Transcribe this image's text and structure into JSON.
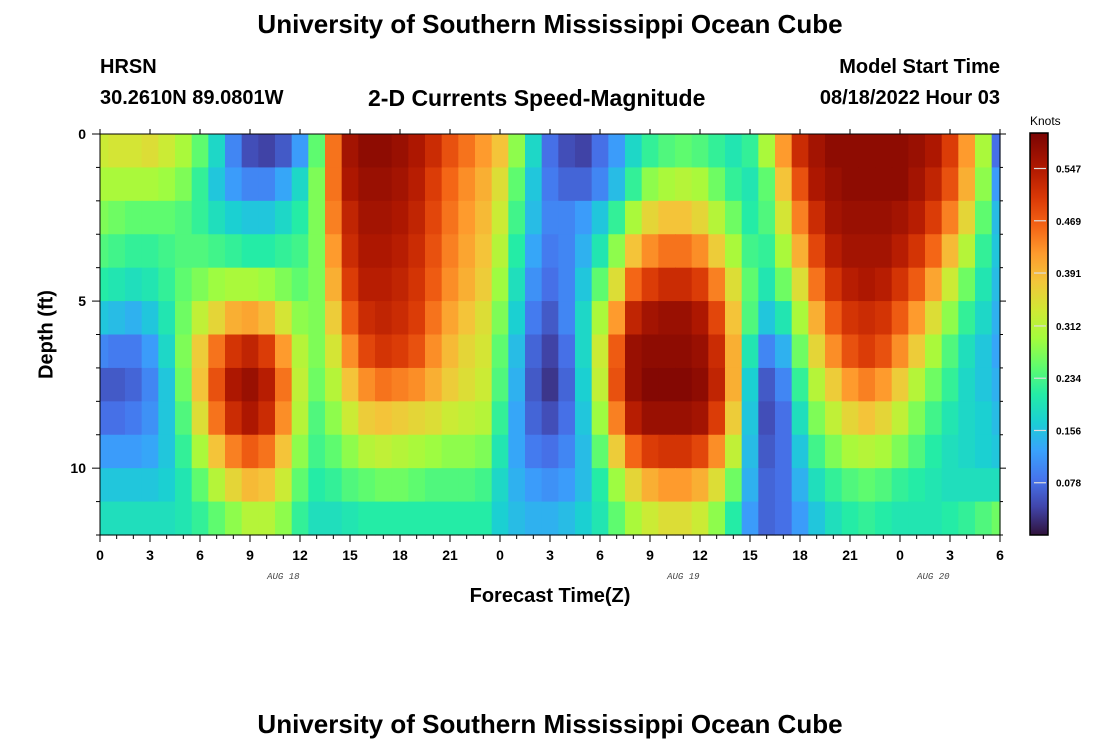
{
  "page": {
    "title": "University of Southern Mississippi Ocean Cube",
    "footer_title": "University of Southern Mississippi Ocean Cube",
    "station": "HRSN",
    "coords": "30.2610N  89.0801W",
    "plot_title": "2-D Currents Speed-Magnitude",
    "start_label": "Model Start Time",
    "start_value": "08/18/2022 Hour 03"
  },
  "chart_data": {
    "type": "heatmap",
    "title": "2-D Currents Speed-Magnitude",
    "xlabel": "Forecast Time(Z)",
    "ylabel": "Depth (ft)",
    "x_tick_labels": [
      "0",
      "3",
      "6",
      "9",
      "12",
      "15",
      "18",
      "21",
      "0",
      "3",
      "6",
      "9",
      "12",
      "15",
      "18",
      "21",
      "0",
      "3",
      "6"
    ],
    "x_range_hours": [
      0,
      54
    ],
    "date_labels": [
      {
        "text": "AUG 18",
        "hour": 11
      },
      {
        "text": "AUG 19",
        "hour": 35
      },
      {
        "text": "AUG 20",
        "hour": 50
      }
    ],
    "y_tick_labels": [
      "0",
      "5",
      "10"
    ],
    "y_range_ft": [
      0,
      12
    ],
    "colorbar": {
      "units": "Knots",
      "min": 0.0,
      "max": 0.6,
      "tick_values": [
        0.547,
        0.469,
        0.391,
        0.312,
        0.234,
        0.156,
        0.078
      ],
      "tick_labels": [
        "0.547",
        "0.469",
        "0.391",
        "0.312",
        "0.234",
        "0.156",
        "0.078"
      ]
    },
    "depth_levels_ft": [
      0.5,
      1.5,
      2.5,
      3.5,
      4.5,
      5.5,
      6.5,
      7.5,
      8.5,
      9.5,
      10.5,
      11.5
    ],
    "time_step_hours": 1,
    "speed_field": {
      "depths_ft": [
        0.5,
        1.5,
        2.5,
        3.5,
        4.5,
        5.5,
        6.5,
        7.5,
        8.5,
        9.5,
        10.5,
        11.5
      ],
      "hours": [
        0,
        1,
        2,
        3,
        4,
        5,
        6,
        7,
        8,
        9,
        10,
        11,
        12,
        13,
        14,
        15,
        16,
        17,
        18,
        19,
        20,
        21,
        22,
        23,
        24,
        25,
        26,
        27,
        28,
        29,
        30,
        31,
        32,
        33,
        34,
        35,
        36,
        37,
        38,
        39,
        40,
        41,
        42,
        43,
        44,
        45,
        46,
        47,
        48,
        49,
        50,
        51,
        52,
        53,
        54
      ],
      "values": [
        [
          0.33,
          0.34,
          0.34,
          0.35,
          0.33,
          0.3,
          0.25,
          0.18,
          0.1,
          0.05,
          0.04,
          0.06,
          0.12,
          0.25,
          0.45,
          0.56,
          0.58,
          0.58,
          0.57,
          0.55,
          0.52,
          0.48,
          0.45,
          0.42,
          0.38,
          0.28,
          0.18,
          0.08,
          0.05,
          0.04,
          0.08,
          0.12,
          0.18,
          0.22,
          0.24,
          0.25,
          0.24,
          0.22,
          0.2,
          0.22,
          0.3,
          0.42,
          0.52,
          0.56,
          0.58,
          0.58,
          0.58,
          0.58,
          0.58,
          0.57,
          0.55,
          0.5,
          0.42,
          0.3,
          0.08
        ],
        [
          0.3,
          0.3,
          0.3,
          0.3,
          0.29,
          0.27,
          0.22,
          0.16,
          0.12,
          0.1,
          0.1,
          0.13,
          0.18,
          0.27,
          0.45,
          0.55,
          0.57,
          0.57,
          0.56,
          0.54,
          0.5,
          0.46,
          0.43,
          0.4,
          0.35,
          0.25,
          0.16,
          0.09,
          0.07,
          0.07,
          0.1,
          0.15,
          0.22,
          0.28,
          0.3,
          0.31,
          0.3,
          0.26,
          0.22,
          0.2,
          0.25,
          0.38,
          0.48,
          0.55,
          0.57,
          0.58,
          0.58,
          0.58,
          0.58,
          0.56,
          0.53,
          0.48,
          0.4,
          0.28,
          0.12
        ],
        [
          0.27,
          0.26,
          0.25,
          0.25,
          0.25,
          0.24,
          0.22,
          0.19,
          0.17,
          0.16,
          0.16,
          0.18,
          0.21,
          0.27,
          0.44,
          0.53,
          0.56,
          0.56,
          0.55,
          0.53,
          0.49,
          0.45,
          0.42,
          0.39,
          0.33,
          0.23,
          0.15,
          0.1,
          0.1,
          0.12,
          0.16,
          0.22,
          0.3,
          0.36,
          0.38,
          0.38,
          0.36,
          0.31,
          0.26,
          0.21,
          0.24,
          0.34,
          0.44,
          0.52,
          0.56,
          0.57,
          0.57,
          0.57,
          0.56,
          0.54,
          0.5,
          0.44,
          0.36,
          0.25,
          0.15
        ],
        [
          0.24,
          0.23,
          0.22,
          0.22,
          0.23,
          0.24,
          0.24,
          0.23,
          0.22,
          0.21,
          0.21,
          0.22,
          0.23,
          0.27,
          0.42,
          0.52,
          0.55,
          0.55,
          0.54,
          0.52,
          0.48,
          0.44,
          0.41,
          0.38,
          0.31,
          0.21,
          0.13,
          0.09,
          0.1,
          0.14,
          0.2,
          0.28,
          0.38,
          0.43,
          0.45,
          0.45,
          0.43,
          0.37,
          0.3,
          0.23,
          0.22,
          0.3,
          0.4,
          0.49,
          0.54,
          0.56,
          0.56,
          0.56,
          0.54,
          0.51,
          0.46,
          0.39,
          0.31,
          0.22,
          0.16
        ],
        [
          0.21,
          0.2,
          0.19,
          0.2,
          0.22,
          0.25,
          0.27,
          0.29,
          0.3,
          0.3,
          0.29,
          0.27,
          0.25,
          0.27,
          0.4,
          0.5,
          0.54,
          0.54,
          0.53,
          0.51,
          0.47,
          0.43,
          0.4,
          0.37,
          0.29,
          0.19,
          0.11,
          0.08,
          0.1,
          0.16,
          0.25,
          0.35,
          0.46,
          0.5,
          0.52,
          0.52,
          0.5,
          0.44,
          0.35,
          0.25,
          0.2,
          0.26,
          0.35,
          0.45,
          0.51,
          0.54,
          0.55,
          0.54,
          0.51,
          0.47,
          0.41,
          0.33,
          0.26,
          0.2,
          0.15
        ],
        [
          0.16,
          0.15,
          0.14,
          0.16,
          0.2,
          0.26,
          0.32,
          0.36,
          0.4,
          0.41,
          0.39,
          0.34,
          0.28,
          0.27,
          0.37,
          0.47,
          0.52,
          0.53,
          0.52,
          0.5,
          0.45,
          0.41,
          0.38,
          0.35,
          0.27,
          0.17,
          0.09,
          0.06,
          0.1,
          0.18,
          0.3,
          0.42,
          0.53,
          0.56,
          0.57,
          0.57,
          0.55,
          0.49,
          0.38,
          0.24,
          0.16,
          0.2,
          0.3,
          0.4,
          0.47,
          0.51,
          0.52,
          0.51,
          0.47,
          0.42,
          0.35,
          0.28,
          0.22,
          0.18,
          0.14
        ],
        [
          0.1,
          0.09,
          0.09,
          0.12,
          0.18,
          0.27,
          0.37,
          0.45,
          0.51,
          0.53,
          0.5,
          0.42,
          0.31,
          0.27,
          0.34,
          0.43,
          0.49,
          0.51,
          0.5,
          0.48,
          0.43,
          0.39,
          0.36,
          0.34,
          0.25,
          0.15,
          0.07,
          0.04,
          0.08,
          0.18,
          0.33,
          0.47,
          0.57,
          0.58,
          0.58,
          0.58,
          0.57,
          0.52,
          0.4,
          0.2,
          0.1,
          0.14,
          0.26,
          0.36,
          0.43,
          0.48,
          0.5,
          0.48,
          0.43,
          0.37,
          0.3,
          0.24,
          0.19,
          0.16,
          0.13
        ],
        [
          0.06,
          0.06,
          0.07,
          0.1,
          0.16,
          0.26,
          0.38,
          0.48,
          0.55,
          0.57,
          0.54,
          0.45,
          0.32,
          0.26,
          0.31,
          0.38,
          0.43,
          0.45,
          0.44,
          0.43,
          0.4,
          0.37,
          0.35,
          0.33,
          0.24,
          0.14,
          0.06,
          0.03,
          0.07,
          0.17,
          0.32,
          0.48,
          0.57,
          0.59,
          0.59,
          0.59,
          0.58,
          0.53,
          0.4,
          0.17,
          0.06,
          0.1,
          0.22,
          0.31,
          0.37,
          0.42,
          0.44,
          0.42,
          0.37,
          0.31,
          0.26,
          0.22,
          0.18,
          0.16,
          0.14
        ],
        [
          0.08,
          0.08,
          0.09,
          0.11,
          0.16,
          0.24,
          0.35,
          0.45,
          0.52,
          0.55,
          0.52,
          0.43,
          0.31,
          0.24,
          0.28,
          0.33,
          0.37,
          0.38,
          0.37,
          0.36,
          0.35,
          0.33,
          0.32,
          0.31,
          0.22,
          0.13,
          0.07,
          0.05,
          0.08,
          0.16,
          0.29,
          0.44,
          0.54,
          0.57,
          0.57,
          0.57,
          0.56,
          0.5,
          0.37,
          0.16,
          0.05,
          0.08,
          0.19,
          0.27,
          0.32,
          0.36,
          0.38,
          0.36,
          0.32,
          0.27,
          0.23,
          0.2,
          0.18,
          0.17,
          0.15
        ],
        [
          0.12,
          0.12,
          0.12,
          0.13,
          0.16,
          0.22,
          0.3,
          0.38,
          0.44,
          0.47,
          0.45,
          0.38,
          0.28,
          0.23,
          0.25,
          0.28,
          0.31,
          0.32,
          0.31,
          0.3,
          0.29,
          0.28,
          0.28,
          0.27,
          0.2,
          0.13,
          0.09,
          0.08,
          0.1,
          0.15,
          0.25,
          0.37,
          0.46,
          0.5,
          0.51,
          0.51,
          0.49,
          0.43,
          0.32,
          0.15,
          0.06,
          0.08,
          0.16,
          0.23,
          0.27,
          0.3,
          0.31,
          0.3,
          0.27,
          0.24,
          0.21,
          0.19,
          0.18,
          0.17,
          0.16
        ],
        [
          0.16,
          0.16,
          0.16,
          0.16,
          0.17,
          0.2,
          0.25,
          0.31,
          0.36,
          0.39,
          0.38,
          0.33,
          0.25,
          0.21,
          0.22,
          0.24,
          0.25,
          0.26,
          0.26,
          0.25,
          0.24,
          0.24,
          0.24,
          0.23,
          0.18,
          0.14,
          0.12,
          0.11,
          0.12,
          0.15,
          0.21,
          0.29,
          0.36,
          0.4,
          0.42,
          0.42,
          0.4,
          0.35,
          0.26,
          0.14,
          0.07,
          0.08,
          0.14,
          0.19,
          0.22,
          0.24,
          0.25,
          0.24,
          0.22,
          0.21,
          0.2,
          0.19,
          0.19,
          0.19,
          0.19
        ],
        [
          0.19,
          0.19,
          0.19,
          0.19,
          0.19,
          0.2,
          0.22,
          0.25,
          0.28,
          0.31,
          0.31,
          0.28,
          0.22,
          0.19,
          0.19,
          0.2,
          0.21,
          0.21,
          0.21,
          0.21,
          0.21,
          0.21,
          0.21,
          0.21,
          0.17,
          0.15,
          0.14,
          0.14,
          0.15,
          0.17,
          0.2,
          0.25,
          0.3,
          0.33,
          0.35,
          0.35,
          0.33,
          0.28,
          0.21,
          0.12,
          0.07,
          0.08,
          0.12,
          0.16,
          0.19,
          0.21,
          0.22,
          0.21,
          0.2,
          0.2,
          0.2,
          0.21,
          0.22,
          0.24,
          0.26
        ]
      ]
    }
  }
}
